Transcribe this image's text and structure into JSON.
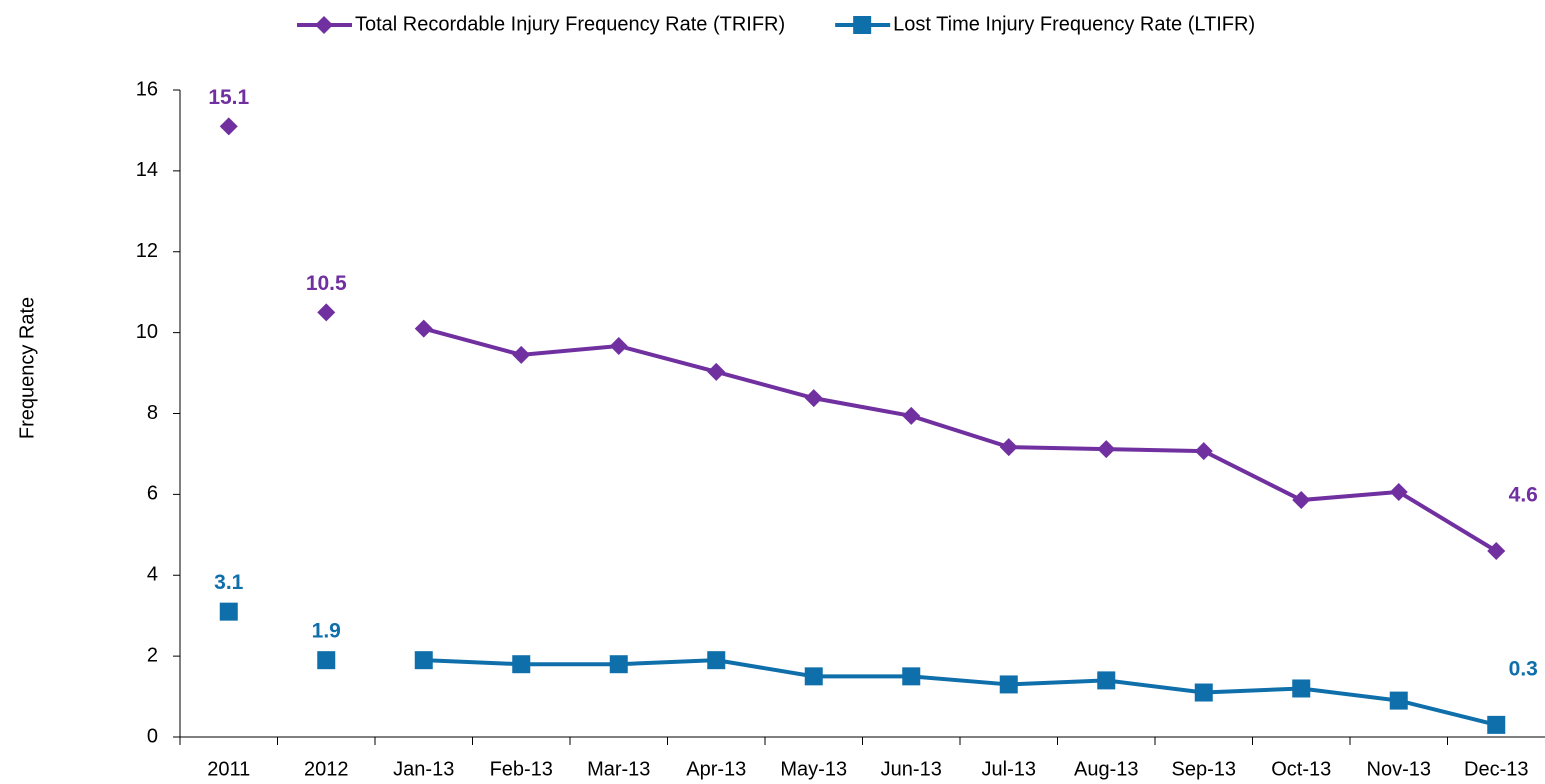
{
  "chart_data": {
    "type": "line",
    "y_label": "Frequency Rate",
    "categories": [
      "2011",
      "2012",
      "Jan-13",
      "Feb-13",
      "Mar-13",
      "Apr-13",
      "May-13",
      "Jun-13",
      "Jul-13",
      "Aug-13",
      "Sep-13",
      "Oct-13",
      "Nov-13",
      "Dec-13"
    ],
    "series": [
      {
        "name": "Total Recordable Injury Frequency Rate (TRIFR)",
        "color": "#7030a0",
        "marker": "diamond",
        "values": [
          15.1,
          10.5,
          10.1,
          9.45,
          9.67,
          9.03,
          8.38,
          7.94,
          7.17,
          7.12,
          7.07,
          5.86,
          6.06,
          4.6
        ],
        "labeled_points": [
          0,
          1,
          13
        ]
      },
      {
        "name": "Lost Time Injury Frequency Rate (LTIFR)",
        "color": "#0f6fab",
        "marker": "square",
        "values": [
          3.1,
          1.9,
          1.9,
          1.8,
          1.8,
          1.9,
          1.5,
          1.5,
          1.3,
          1.4,
          1.1,
          1.2,
          0.9,
          0.3
        ],
        "labeled_points": [
          0,
          1,
          13
        ]
      }
    ],
    "line_starts_at": "Jan-13",
    "ylim": [
      0,
      16
    ],
    "yticks": [
      0,
      2,
      4,
      6,
      8,
      10,
      12,
      14,
      16
    ],
    "grid": false,
    "legend": "top"
  }
}
